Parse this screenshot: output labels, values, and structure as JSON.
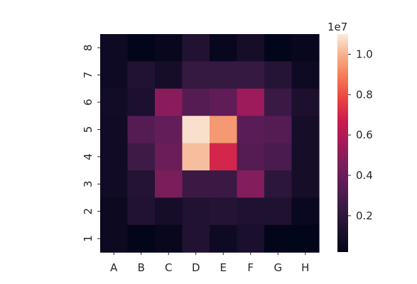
{
  "chart_data": {
    "type": "heatmap",
    "title": "",
    "xlabel": "",
    "ylabel": "",
    "x_categories": [
      "A",
      "B",
      "C",
      "D",
      "E",
      "F",
      "G",
      "H"
    ],
    "y_categories": [
      "8",
      "7",
      "6",
      "5",
      "4",
      "3",
      "2",
      "1"
    ],
    "values": [
      [
        700000,
        50000,
        400000,
        1500000,
        400000,
        1000000,
        100000,
        400000
      ],
      [
        700000,
        1500000,
        1000000,
        2300000,
        2300000,
        2300000,
        1700000,
        700000
      ],
      [
        900000,
        1300000,
        5000000,
        3300000,
        3700000,
        5500000,
        2500000,
        1300000
      ],
      [
        800000,
        3300000,
        3800000,
        10800000,
        9500000,
        3500000,
        3300000,
        1000000
      ],
      [
        800000,
        2600000,
        4000000,
        10200000,
        7000000,
        3300000,
        3000000,
        1000000
      ],
      [
        800000,
        1600000,
        4500000,
        2500000,
        2500000,
        4800000,
        2000000,
        1000000
      ],
      [
        600000,
        1500000,
        1000000,
        1500000,
        1600000,
        1400000,
        1400000,
        500000
      ],
      [
        600000,
        100000,
        400000,
        1500000,
        700000,
        1200000,
        100000,
        100000
      ]
    ],
    "colorbar": {
      "min": 200000,
      "max": 11000000,
      "ticks": [
        0.2,
        0.4,
        0.6,
        0.8,
        1.0
      ],
      "tick_labels": [
        "0.2",
        "0.4",
        "0.6",
        "0.8",
        "1.0"
      ],
      "scale_label": "1e7",
      "colormap": "rocket"
    },
    "grid": false,
    "legend": "colorbar-right"
  }
}
